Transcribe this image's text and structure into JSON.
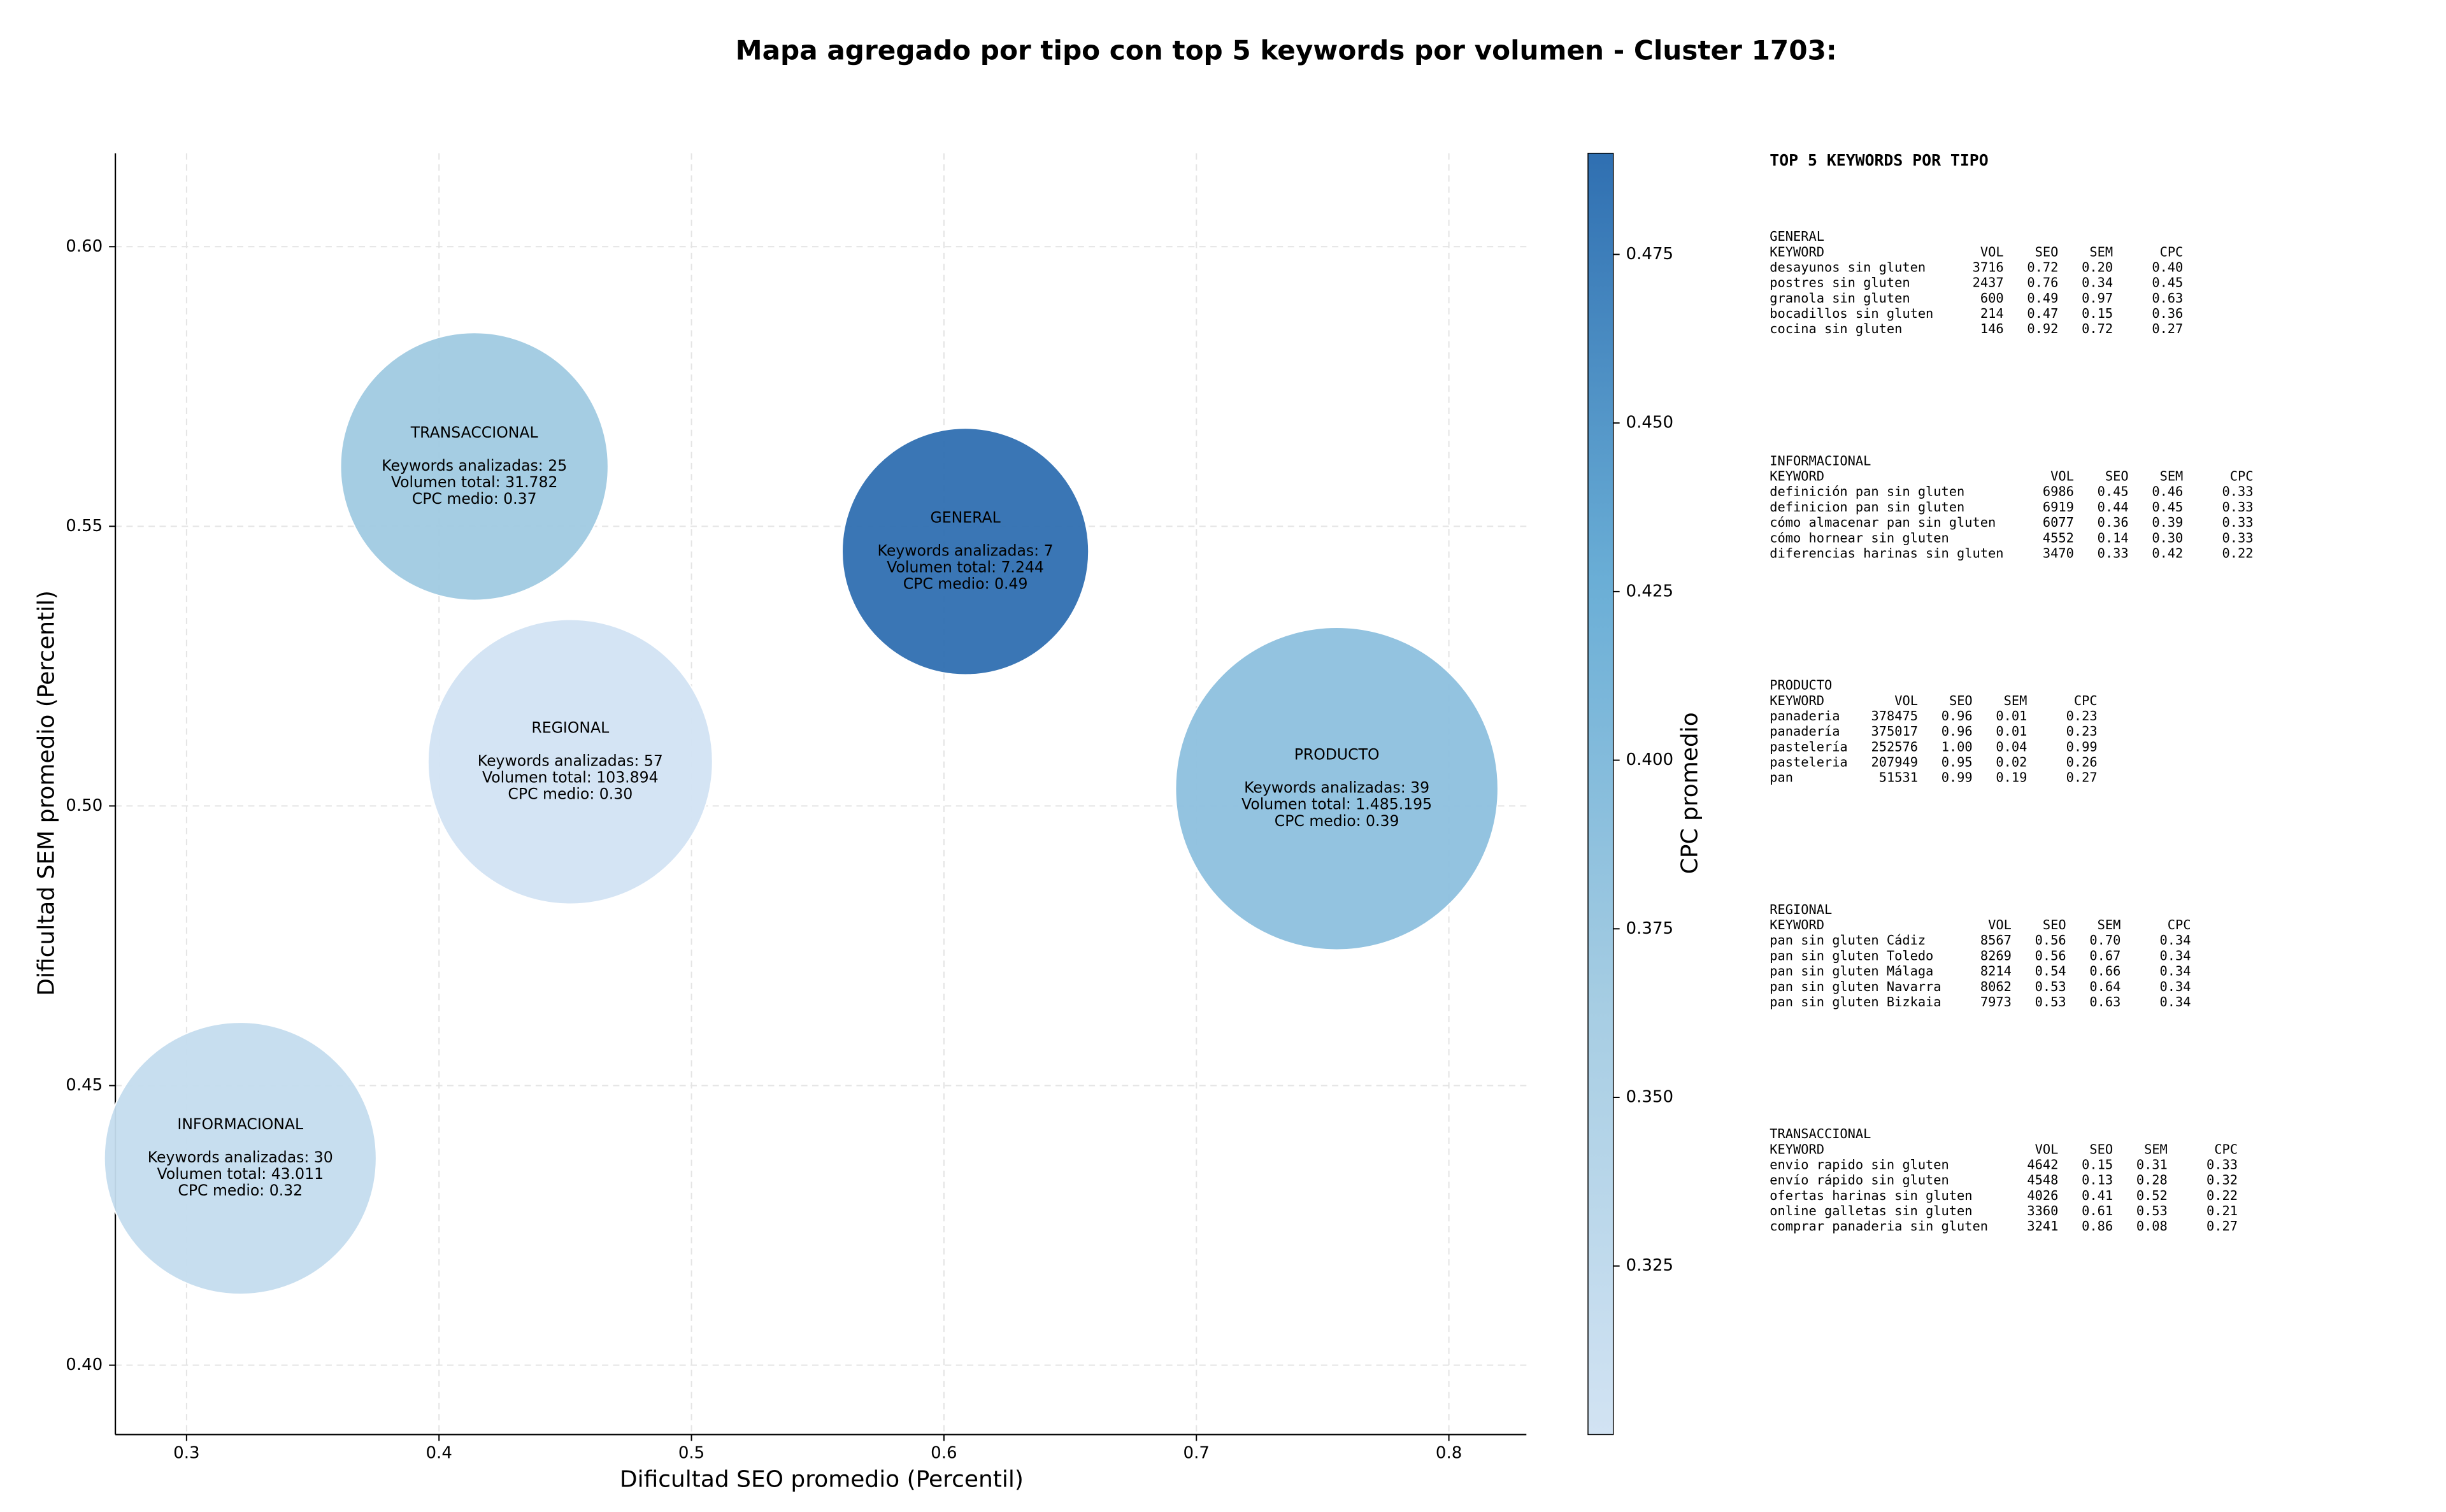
{
  "chart_data": {
    "type": "bubble",
    "title": "Mapa agregado por tipo con top 5 keywords por volumen - Cluster 1703:",
    "xlabel": "Dificultad SEO promedio (Percentil)",
    "ylabel": "Dificultad SEM promedio (Percentil)",
    "categories": [
      "TRANSACCIONAL",
      "GENERAL",
      "REGIONAL",
      "PRODUCTO",
      "INFORMACIONAL"
    ],
    "x": [
      0.414,
      0.6085,
      0.452,
      0.7556,
      0.3213
    ],
    "values": [
      0.5607,
      0.5455,
      0.5079,
      0.5031,
      0.437
    ],
    "keywords": [
      25,
      7,
      57,
      39,
      30
    ],
    "volume": [
      31782,
      7244,
      103894,
      1485195,
      43011
    ],
    "cpc": [
      0.37,
      0.49,
      0.3,
      0.39,
      0.32
    ],
    "keyword_labels": [
      "Keywords analizadas: 25",
      "Keywords analizadas: 7",
      "Keywords analizadas: 57",
      "Keywords analizadas: 39",
      "Keywords analizadas: 30"
    ],
    "volume_labels": [
      "Volumen total: 31.782",
      "Volumen total: 7.244",
      "Volumen total: 103.894",
      "Volumen total: 1.485.195",
      "Volumen total: 43.011"
    ],
    "cpc_labels": [
      "CPC medio: 0.37",
      "CPC medio: 0.49",
      "CPC medio: 0.30",
      "CPC medio: 0.39",
      "CPC medio: 0.32"
    ],
    "xlim": [
      0.2718,
      0.8307
    ],
    "ylim": [
      0.3876,
      0.6167
    ],
    "xticks": [
      0.3,
      0.4,
      0.5,
      0.6,
      0.7,
      0.8
    ],
    "yticks": [
      {
        "value": 0.4,
        "label": "0.40"
      },
      0.45,
      {
        "value": 0.5,
        "label": "0.50"
      },
      0.55,
      {
        "value": 0.6,
        "label": "0.60"
      }
    ],
    "grid": true,
    "colorbar": {
      "label": "CPC promedio",
      "lim": [
        0.3,
        0.49
      ],
      "ticks": [
        0.325,
        {
          "value": 0.35,
          "label": "0.350"
        },
        0.375,
        {
          "value": 0.4,
          "label": "0.400"
        },
        0.425,
        {
          "value": 0.45,
          "label": "0.450"
        },
        0.475
      ],
      "colormap": [
        "#d2e3f3",
        "#a6cde3",
        "#6aaed6",
        "#2f6fb1"
      ]
    },
    "table": {
      "title": "TOP 5 KEYWORDS POR TIPO",
      "sections": [
        {
          "name": "GENERAL",
          "header": [
            "KEYWORD",
            "VOL",
            "SEO",
            "SEM",
            "CPC"
          ],
          "rows": [
            [
              "desayunos sin gluten",
              "3716",
              "0.72",
              "0.20",
              "0.40"
            ],
            [
              "postres sin gluten",
              "2437",
              "0.76",
              "0.34",
              "0.45"
            ],
            [
              "granola sin gluten",
              "600",
              "0.49",
              "0.97",
              "0.63"
            ],
            [
              "bocadillos sin gluten",
              "214",
              "0.47",
              "0.15",
              "0.36"
            ],
            [
              "cocina sin gluten",
              "146",
              "0.92",
              "0.72",
              "0.27"
            ]
          ]
        },
        {
          "name": "INFORMACIONAL",
          "header": [
            "KEYWORD",
            "VOL",
            "SEO",
            "SEM",
            "CPC"
          ],
          "rows": [
            [
              "definición pan sin gluten",
              "6986",
              "0.45",
              "0.46",
              "0.33"
            ],
            [
              "definicion pan sin gluten",
              "6919",
              "0.44",
              "0.45",
              "0.33"
            ],
            [
              "cómo almacenar pan sin gluten",
              "6077",
              "0.36",
              "0.39",
              "0.33"
            ],
            [
              "cómo hornear sin gluten",
              "4552",
              "0.14",
              "0.30",
              "0.33"
            ],
            [
              "diferencias harinas sin gluten",
              "3470",
              "0.33",
              "0.42",
              "0.22"
            ]
          ]
        },
        {
          "name": "PRODUCTO",
          "header": [
            "KEYWORD",
            "VOL",
            "SEO",
            "SEM",
            "CPC"
          ],
          "rows": [
            [
              "panaderia",
              "378475",
              "0.96",
              "0.01",
              "0.23"
            ],
            [
              "panadería",
              "375017",
              "0.96",
              "0.01",
              "0.23"
            ],
            [
              "pastelería",
              "252576",
              "1.00",
              "0.04",
              "0.99"
            ],
            [
              "pasteleria",
              "207949",
              "0.95",
              "0.02",
              "0.26"
            ],
            [
              "pan",
              "51531",
              "0.99",
              "0.19",
              "0.27"
            ]
          ]
        },
        {
          "name": "REGIONAL",
          "header": [
            "KEYWORD",
            "VOL",
            "SEO",
            "SEM",
            "CPC"
          ],
          "rows": [
            [
              "pan sin gluten Cádiz",
              "8567",
              "0.56",
              "0.70",
              "0.34"
            ],
            [
              "pan sin gluten Toledo",
              "8269",
              "0.56",
              "0.67",
              "0.34"
            ],
            [
              "pan sin gluten Málaga",
              "8214",
              "0.54",
              "0.66",
              "0.34"
            ],
            [
              "pan sin gluten Navarra",
              "8062",
              "0.53",
              "0.64",
              "0.34"
            ],
            [
              "pan sin gluten Bizkaia",
              "7973",
              "0.53",
              "0.63",
              "0.34"
            ]
          ]
        },
        {
          "name": "TRANSACCIONAL",
          "header": [
            "KEYWORD",
            "VOL",
            "SEO",
            "SEM",
            "CPC"
          ],
          "rows": [
            [
              "envio rapido sin gluten",
              "4642",
              "0.15",
              "0.31",
              "0.33"
            ],
            [
              "envío rápido sin gluten",
              "4548",
              "0.13",
              "0.28",
              "0.32"
            ],
            [
              "ofertas harinas sin gluten",
              "4026",
              "0.41",
              "0.52",
              "0.22"
            ],
            [
              "online galletas sin gluten",
              "3360",
              "0.61",
              "0.53",
              "0.21"
            ],
            [
              "comprar panaderia sin gluten",
              "3241",
              "0.86",
              "0.08",
              "0.27"
            ]
          ]
        }
      ]
    }
  }
}
